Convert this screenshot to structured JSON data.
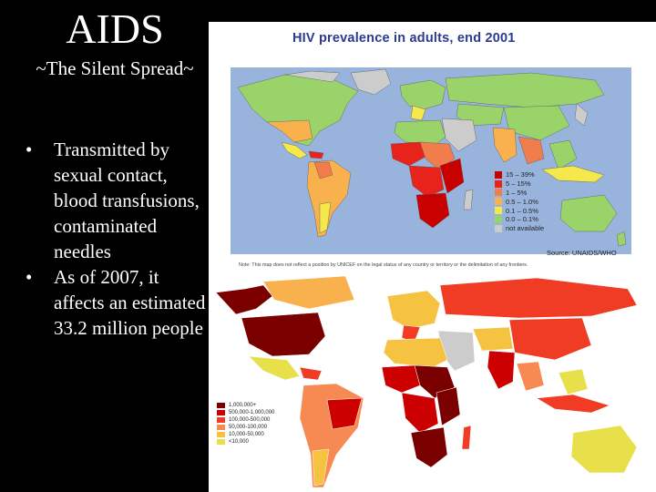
{
  "slide": {
    "title": "AIDS",
    "subtitle": "~The Silent Spread~",
    "bullets": [
      {
        "marker": "•",
        "text": "Transmitted by sexual contact, blood transfusions, contaminated needles"
      },
      {
        "marker": "•",
        "text": "As of 2007, it affects an estimated 33.2 million people"
      }
    ]
  },
  "map_top": {
    "title": "HIV prevalence in adults, end 2001",
    "legend": [
      {
        "label": "15 – 39%",
        "color": "#c80000"
      },
      {
        "label": "5 – 15%",
        "color": "#e8231c"
      },
      {
        "label": "1 – 5%",
        "color": "#f27d4c"
      },
      {
        "label": "0.5 – 1.0%",
        "color": "#f9b14d"
      },
      {
        "label": "0.1 – 0.5%",
        "color": "#f5e84a"
      },
      {
        "label": "0.0 – 0.1%",
        "color": "#9ad36a"
      },
      {
        "label": "not available",
        "color": "#cccccc"
      }
    ],
    "source": "Source: UNAIDS/WHO",
    "note": "Note: This map does not reflect a position by UNICEF on the legal status of any country or territory or the delimitation of any frontiers.",
    "ocean_color": "#99b4dc"
  },
  "map_bottom": {
    "legend": [
      {
        "label": "1,000,000+",
        "color": "#7a0000"
      },
      {
        "label": "500,000-1,000,000",
        "color": "#cc0000"
      },
      {
        "label": "100,000-500,000",
        "color": "#f03c24"
      },
      {
        "label": "50,000-100,000",
        "color": "#f78a52"
      },
      {
        "label": "10,000-50,000",
        "color": "#f5c242"
      },
      {
        "label": "<10,000",
        "color": "#e8e04a"
      }
    ]
  }
}
